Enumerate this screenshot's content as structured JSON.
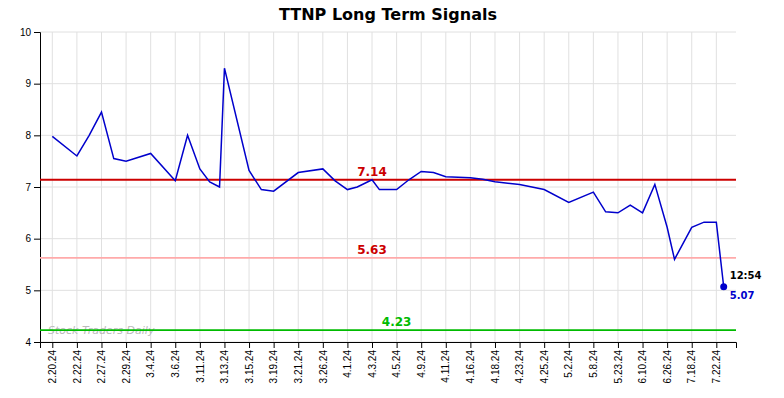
{
  "chart_data": {
    "type": "line",
    "title": "TTNP Long Term Signals",
    "x": [
      0,
      1,
      1.5,
      2,
      2.5,
      3,
      4,
      5,
      5.5,
      6,
      6.4,
      6.8,
      7,
      8,
      8.5,
      9,
      10,
      11,
      11.5,
      12,
      12.4,
      13,
      13.3,
      14,
      14.5,
      15,
      15.5,
      16,
      17,
      17.5,
      18,
      19,
      20,
      21,
      22,
      22.5,
      23,
      23.5,
      24,
      24.5,
      25,
      25.3,
      26,
      26.5,
      27,
      27.3
    ],
    "values": [
      7.98,
      7.6,
      8.0,
      8.45,
      7.55,
      7.5,
      7.65,
      7.12,
      8.0,
      7.35,
      7.1,
      7.0,
      9.3,
      7.32,
      6.95,
      6.92,
      7.28,
      7.35,
      7.12,
      6.95,
      7.0,
      7.14,
      6.95,
      6.95,
      7.14,
      7.3,
      7.28,
      7.2,
      7.18,
      7.15,
      7.1,
      7.05,
      6.95,
      6.7,
      6.9,
      6.52,
      6.5,
      6.65,
      6.5,
      7.05,
      6.22,
      5.6,
      6.22,
      6.32,
      6.32,
      5.07
    ],
    "color": "#0000cc",
    "xlim": [
      -0.5,
      27.8
    ],
    "xticks": [
      {
        "value": 0,
        "label": "2.20.24"
      },
      {
        "value": 1,
        "label": "2.22.24"
      },
      {
        "value": 2,
        "label": "2.27.24"
      },
      {
        "value": 3,
        "label": "2.29.24"
      },
      {
        "value": 4,
        "label": "3.4.24"
      },
      {
        "value": 5,
        "label": "3.6.24"
      },
      {
        "value": 6,
        "label": "3.11.24"
      },
      {
        "value": 7,
        "label": "3.13.24"
      },
      {
        "value": 8,
        "label": "3.15.24"
      },
      {
        "value": 9,
        "label": "3.19.24"
      },
      {
        "value": 10,
        "label": "3.21.24"
      },
      {
        "value": 11,
        "label": "3.26.24"
      },
      {
        "value": 12,
        "label": "4.1.24"
      },
      {
        "value": 13,
        "label": "4.3.24"
      },
      {
        "value": 14,
        "label": "4.5.24"
      },
      {
        "value": 15,
        "label": "4.9.24"
      },
      {
        "value": 16,
        "label": "4.11.24"
      },
      {
        "value": 17,
        "label": "4.16.24"
      },
      {
        "value": 18,
        "label": "4.18.24"
      },
      {
        "value": 19,
        "label": "4.23.24"
      },
      {
        "value": 20,
        "label": "4.25.24"
      },
      {
        "value": 21,
        "label": "5.2.24"
      },
      {
        "value": 22,
        "label": "5.8.24"
      },
      {
        "value": 23,
        "label": "5.23.24"
      },
      {
        "value": 24,
        "label": "6.10.24"
      },
      {
        "value": 25,
        "label": "6.26.24"
      },
      {
        "value": 26,
        "label": "7.18.24"
      },
      {
        "value": 27,
        "label": "7.22.24"
      }
    ],
    "ylim": [
      4.0,
      10.0
    ],
    "yticks": [
      4,
      5,
      6,
      7,
      8,
      9,
      10
    ],
    "grid": true,
    "reference_lines": [
      {
        "y": 7.14,
        "color": "#cc0000",
        "label": "7.14",
        "label_color": "#cc0000",
        "x": 13
      },
      {
        "y": 5.63,
        "color": "#ffaaaa",
        "label": "5.63",
        "label_color": "#cc0000",
        "x": 13
      },
      {
        "y": 4.23,
        "color": "#00bb00",
        "label": "4.23",
        "label_color": "#00bb00",
        "x": 14
      }
    ],
    "last_point": {
      "color": "#0000cc",
      "labels": [
        "12:54",
        "5.07"
      ]
    },
    "watermark": "Stock Traders Daily"
  }
}
